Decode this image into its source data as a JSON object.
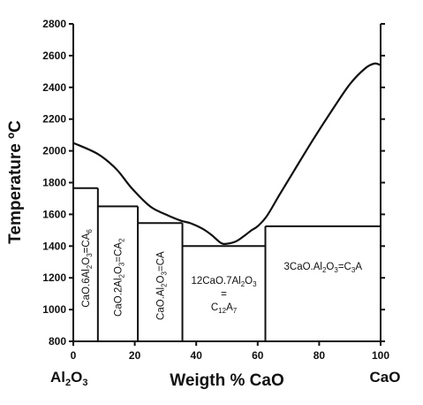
{
  "chart_data": {
    "type": "phase-diagram",
    "xlabel": "Weigth % CaO",
    "ylabel": "Temperature ºC",
    "xlim": [
      0,
      100
    ],
    "ylim": [
      800,
      2800
    ],
    "xticks": [
      0,
      20,
      40,
      60,
      80,
      100
    ],
    "yticks": [
      800,
      1000,
      1200,
      1400,
      1600,
      1800,
      2000,
      2200,
      2400,
      2600,
      2800
    ],
    "left_end_label": {
      "main": "Al",
      "sub1": "2",
      "main2": "O",
      "sub2": "3"
    },
    "right_end_label": "CaO",
    "liquidus": [
      [
        0,
        2050
      ],
      [
        8,
        1980
      ],
      [
        14,
        1885
      ],
      [
        19,
        1765
      ],
      [
        25,
        1650
      ],
      [
        30,
        1600
      ],
      [
        35,
        1560
      ],
      [
        38,
        1545
      ],
      [
        42,
        1510
      ],
      [
        45,
        1470
      ],
      [
        48,
        1420
      ],
      [
        50,
        1415
      ],
      [
        53,
        1430
      ],
      [
        56,
        1470
      ],
      [
        58,
        1500
      ],
      [
        60,
        1525
      ],
      [
        63,
        1590
      ],
      [
        67,
        1720
      ],
      [
        72,
        1880
      ],
      [
        78,
        2070
      ],
      [
        84,
        2250
      ],
      [
        90,
        2420
      ],
      [
        95,
        2520
      ],
      [
        98,
        2550
      ],
      [
        100,
        2540
      ]
    ],
    "phases": [
      {
        "x": [
          0,
          8
        ],
        "t_top": 1765,
        "label_parts": [
          "CaO.6Al",
          "2",
          "O",
          "3",
          "=CA",
          "6"
        ]
      },
      {
        "x": [
          8,
          21
        ],
        "t_top": 1650,
        "label_parts": [
          "CaO.2Al",
          "2",
          "O",
          "3",
          "=CA",
          "2"
        ]
      },
      {
        "x": [
          21,
          35.5
        ],
        "t_top": 1545,
        "label_parts": [
          "CaO.Al",
          "2",
          "O",
          "3",
          "=CA"
        ]
      },
      {
        "x": [
          35.5,
          62.5
        ],
        "t_top": 1400,
        "label_lines": [
          [
            "12CaO.7Al",
            "2",
            "O",
            "3"
          ],
          [
            "="
          ],
          [
            "C",
            "12",
            "A",
            "7"
          ]
        ]
      },
      {
        "x": [
          62.5,
          100
        ],
        "t_top": 1525,
        "label_parts": [
          "3CaO.Al",
          "2",
          "O",
          "3",
          "=C",
          "3",
          "A"
        ]
      }
    ]
  }
}
